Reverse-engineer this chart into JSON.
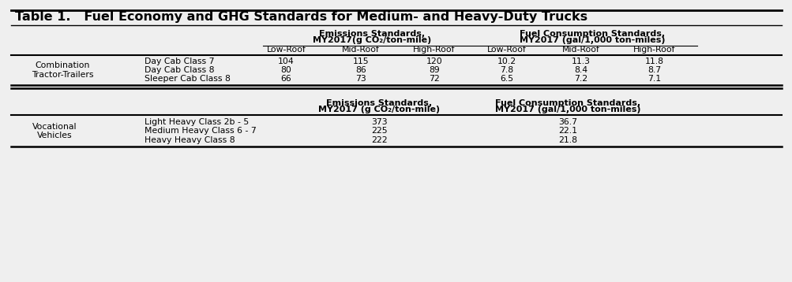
{
  "title": "Table 1.   Fuel Economy and GHG Standards for Medium- and Heavy-Duty Trucks",
  "bg_color": "#efefef",
  "section1": {
    "group_label": "Combination\nTractor-Trailers",
    "emissions_header1": "Emissions Standards,",
    "emissions_header2": "MY2017(g CO₂/ton-mile)",
    "fuel_header1": "Fuel Consumption Standards,",
    "fuel_header2": "MY2017 (gal/1,000 ton-miles)",
    "sub_headers": [
      "Low-Roof",
      "Mid-Roof",
      "High-Roof",
      "Low-Roof",
      "Mid-Roof",
      "High-Roof"
    ],
    "rows": [
      {
        "label": "Day Cab Class 7",
        "em_low": "104",
        "em_mid": "115",
        "em_high": "120",
        "fc_low": "10.2",
        "fc_mid": "11.3",
        "fc_high": "11.8"
      },
      {
        "label": "Day Cab Class 8",
        "em_low": "80",
        "em_mid": "86",
        "em_high": "89",
        "fc_low": "7.8",
        "fc_mid": "8.4",
        "fc_high": "8.7"
      },
      {
        "label": "Sleeper Cab Class 8",
        "em_low": "66",
        "em_mid": "73",
        "em_high": "72",
        "fc_low": "6.5",
        "fc_mid": "7.2",
        "fc_high": "7.1"
      }
    ]
  },
  "section2": {
    "group_label": "Vocational\nVehicles",
    "emissions_header1": "Emissions Standards,",
    "emissions_header2": "MY2017 (g CO₂/ton-mile)",
    "fuel_header1": "Fuel Consumption Standards,",
    "fuel_header2": "MY2017 (gal/1,000 ton-miles)",
    "rows": [
      {
        "label": "Light Heavy Class 2b - 5",
        "em": "373",
        "fc": "36.7"
      },
      {
        "label": "Medium Heavy Class 6 - 7",
        "em": "225",
        "fc": "22.1"
      },
      {
        "label": "Heavy Heavy Class 8",
        "em": "222",
        "fc": "21.8"
      }
    ]
  }
}
